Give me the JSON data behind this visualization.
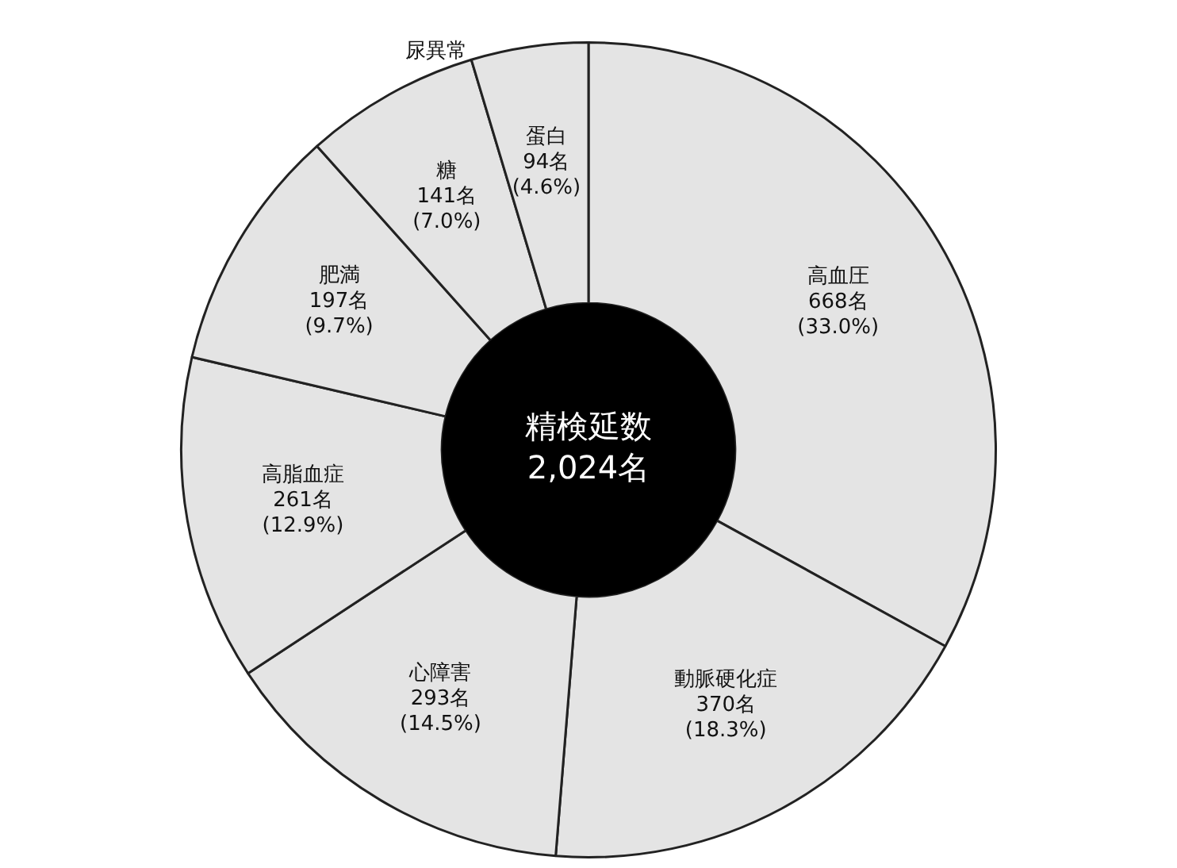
{
  "chart_data": {
    "type": "donut",
    "title": "精検延数 2,024名",
    "categories": [
      "高血圧",
      "動脈硬化症",
      "心障害",
      "高脂血症",
      "肥満",
      "糖",
      "蛋白"
    ],
    "values": [
      668,
      370,
      293,
      261,
      197,
      141,
      94
    ],
    "value_labels": [
      "668名 (33.0%)",
      "370名 (18.3%)",
      "293名 (14.5%)",
      "261名 (12.9%)",
      "197名 (9.7%)",
      "141名 (7.0%)",
      "94名 (4.6%)"
    ],
    "colors": [
      "#e4e4e4",
      "#e4e4e4",
      "#e4e4e4",
      "#e4e4e4",
      "#e4e4e4",
      "#e4e4e4",
      "#e4e4e4"
    ],
    "annotations": [
      "尿異常"
    ],
    "legend": false
  }
}
